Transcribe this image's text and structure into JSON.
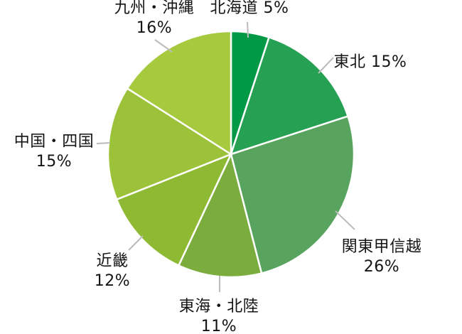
{
  "chart_data": {
    "type": "pie",
    "title": "",
    "unit": "%",
    "direction": "clockwise",
    "start_angle_deg": 0,
    "background": "#ffffff",
    "separator_color": "#ffffff",
    "leader_line_color": "#bcbcbc",
    "label_color": "#141414",
    "categories": [
      "北海道",
      "東北",
      "関東甲信越",
      "東海・北陸",
      "近畿",
      "中国・四国",
      "九州・沖縄"
    ],
    "values": [
      5,
      15,
      26,
      11,
      12,
      15,
      16
    ],
    "slices": [
      {
        "key": "hokkaido",
        "label": "北海道",
        "value": 5,
        "color": "#009a47",
        "lines": [
          "北海道 5%"
        ]
      },
      {
        "key": "tohoku",
        "label": "東北",
        "value": 15,
        "color": "#26a052",
        "lines": [
          "東北 15%"
        ]
      },
      {
        "key": "kanto",
        "label": "関東甲信越",
        "value": 26,
        "color": "#58a45f",
        "lines": [
          "関東甲信越",
          "26%"
        ]
      },
      {
        "key": "tokai_hokuriku",
        "label": "東海・北陸",
        "value": 11,
        "color": "#7aad3e",
        "lines": [
          "東海・北陸",
          "11%"
        ]
      },
      {
        "key": "kinki",
        "label": "近畿",
        "value": 12,
        "color": "#8eba33",
        "lines": [
          "近畿",
          "12%"
        ]
      },
      {
        "key": "chugoku_shikoku",
        "label": "中国・四国",
        "value": 15,
        "color": "#9cc23a",
        "lines": [
          "中国・四国",
          "15%"
        ]
      },
      {
        "key": "kyushu_okinawa",
        "label": "九州・沖縄",
        "value": 16,
        "color": "#a6c93d",
        "lines": [
          "九州・沖縄",
          "16%"
        ]
      }
    ]
  }
}
